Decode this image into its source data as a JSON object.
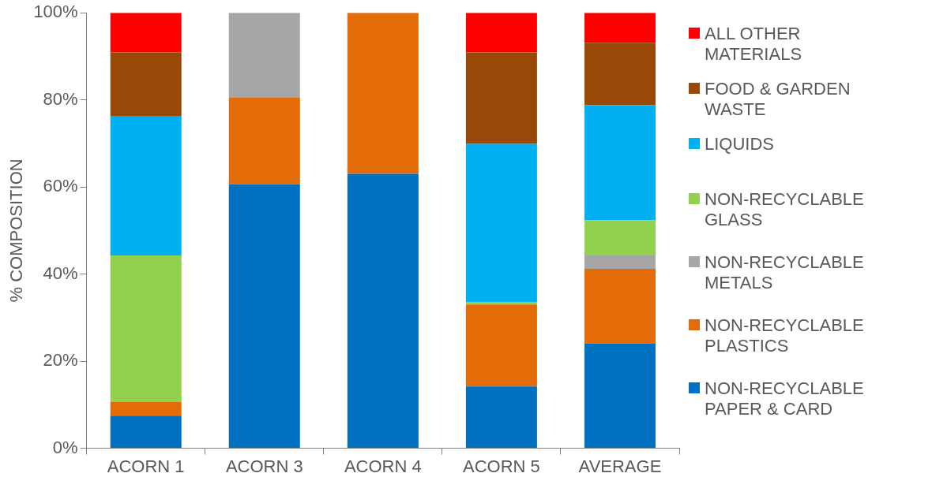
{
  "chart_data": {
    "type": "bar",
    "stacked": true,
    "ylabel": "% COMPOSITION",
    "legend": "right",
    "grid": false,
    "categories": [
      "ACORN 1",
      "ACORN 3",
      "ACORN 4",
      "ACORN 5",
      "AVERAGE"
    ],
    "ylim": [
      0,
      100
    ],
    "yticks": [
      {
        "value": 0,
        "label": "0%"
      },
      {
        "value": 20,
        "label": "20%"
      },
      {
        "value": 40,
        "label": "40%"
      },
      {
        "value": 60,
        "label": "60%"
      },
      {
        "value": 80,
        "label": "80%"
      },
      {
        "value": 100,
        "label": "100%"
      }
    ],
    "series": [
      {
        "name": "NON-RECYCLABLE PAPER & CARD",
        "color": "#0070c0",
        "values": [
          7.5,
          60.6,
          63.0,
          14.2,
          24.1
        ]
      },
      {
        "name": "NON-RECYCLABLE PLASTICS",
        "color": "#e36c09",
        "values": [
          3.1,
          19.9,
          37.0,
          18.8,
          17.1
        ]
      },
      {
        "name": "NON-RECYCLABLE METALS",
        "color": "#a6a6a6",
        "values": [
          0,
          19.5,
          0,
          0,
          3.1
        ]
      },
      {
        "name": "NON-RECYCLABLE GLASS",
        "color": "#92d050",
        "values": [
          33.7,
          0,
          0,
          0.6,
          8.1
        ]
      },
      {
        "name": "LIQUIDS",
        "color": "#00b0f0",
        "values": [
          32.0,
          0,
          0,
          36.3,
          26.4
        ]
      },
      {
        "name": "FOOD & GARDEN WASTE",
        "color": "#984807",
        "values": [
          14.6,
          0,
          0,
          21.0,
          14.3
        ]
      },
      {
        "name": "ALL OTHER MATERIALS",
        "color": "#ff0000",
        "values": [
          9.1,
          0,
          0,
          9.1,
          6.9
        ]
      }
    ]
  }
}
